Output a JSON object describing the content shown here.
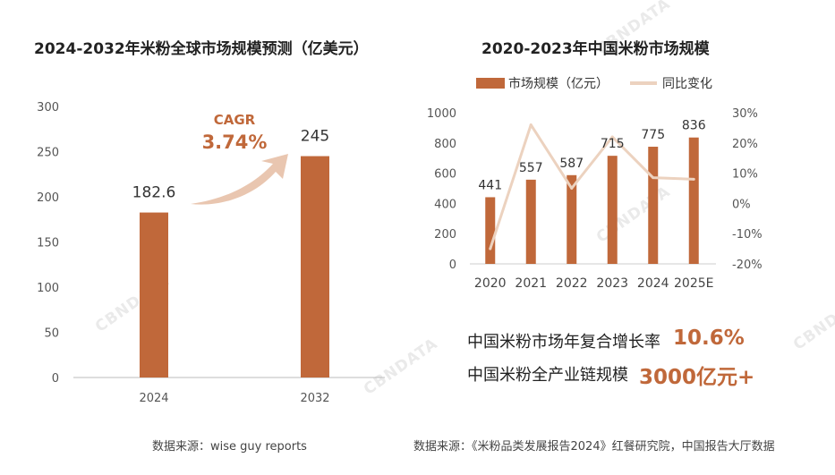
{
  "left_panel": {
    "title": "2024-2032年米粉全球市场规模预测（亿美元）",
    "source": "数据来源：wise guy reports",
    "cagr_label": "CAGR",
    "cagr_value": "3.74%"
  },
  "right_panel": {
    "title": "2020-2023年中国米粉市场规模",
    "legend": {
      "bar": "市场规模（亿元）",
      "line": "同比变化"
    },
    "source": "数据来源：《米粉品类发展报告2024》红餐研究院，中国报告大厅数据"
  },
  "stats": [
    {
      "label": "中国米粉市场年复合增长率",
      "value": "10.6%"
    },
    {
      "label": "中国米粉全产业链规模",
      "value": "3000亿元+"
    }
  ],
  "watermark_text": "CBNDATA",
  "colors": {
    "bar": "#c0683a",
    "line": "#ecd2bf",
    "arrow": "#e9c6b0",
    "accent": "#c0683a"
  },
  "chart_data": [
    {
      "type": "bar",
      "title": "2024-2032年米粉全球市场规模预测（亿美元）",
      "categories": [
        "2024",
        "2032"
      ],
      "values": [
        182.6,
        245
      ],
      "value_labels": [
        "182.6",
        "245"
      ],
      "ylim": [
        0,
        300
      ],
      "yticks": [
        0,
        50,
        100,
        150,
        200,
        250,
        300
      ],
      "ytick_labels": [
        "0",
        "50",
        "100",
        "150",
        "200",
        "250",
        "300"
      ],
      "xlabel": "",
      "ylabel": ""
    },
    {
      "type": "bar",
      "title": "2020-2023年中国米粉市场规模",
      "categories": [
        "2020",
        "2021",
        "2022",
        "2023",
        "2024",
        "2025E"
      ],
      "series": [
        {
          "name": "市场规模（亿元）",
          "type": "bar",
          "values": [
            441,
            557,
            587,
            715,
            775,
            836
          ],
          "value_labels": [
            "441",
            "557",
            "587",
            "715",
            "775",
            "836"
          ]
        },
        {
          "name": "同比变化",
          "type": "line",
          "axis": "right",
          "values": [
            -15,
            26,
            5,
            22,
            8.5,
            8
          ]
        }
      ],
      "ylim": [
        0,
        1000
      ],
      "yticks": [
        0,
        200,
        400,
        600,
        800,
        1000
      ],
      "ytick_labels": [
        "0",
        "200",
        "400",
        "600",
        "800",
        "1000"
      ],
      "y2lim": [
        -20,
        30
      ],
      "y2ticks": [
        -20,
        -10,
        0,
        10,
        20,
        30
      ],
      "y2tick_labels": [
        "-20%",
        "-10%",
        "0%",
        "10%",
        "20%",
        "30%"
      ]
    }
  ]
}
